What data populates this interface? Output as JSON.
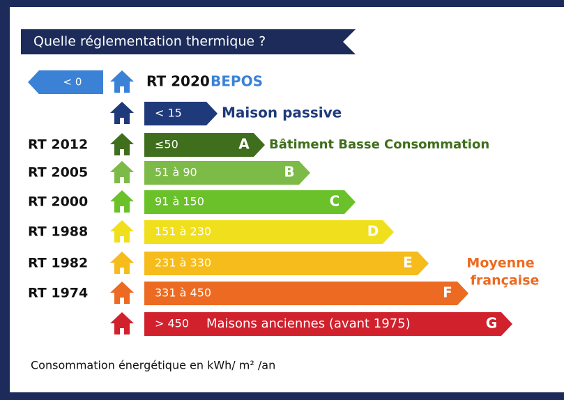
{
  "title": "Quelle réglementation thermique ?",
  "rows": [
    {
      "range": "< 0",
      "regulation": "RT 2020",
      "label": "BEPOS",
      "color": "#3b82d6"
    },
    {
      "range": "< 15",
      "label": "Maison passive",
      "color": "#1f3a7a"
    },
    {
      "regulation": "RT 2012",
      "range": "≤50",
      "class": "A",
      "label": "Bâtiment Basse Consommation",
      "color": "#3f6e1c"
    },
    {
      "regulation": "RT 2005",
      "range": "51 à 90",
      "class": "B",
      "color": "#7dbb48"
    },
    {
      "regulation": "RT 2000",
      "range": "91 à 150",
      "class": "C",
      "color": "#6ac129"
    },
    {
      "regulation": "RT 1988",
      "range": "151 à 230",
      "class": "D",
      "color": "#f0df1c"
    },
    {
      "regulation": "RT 1982",
      "range": "231 à 330",
      "class": "E",
      "color": "#f5bc1c"
    },
    {
      "regulation": "RT 1974",
      "range": "331 à 450",
      "class": "F",
      "color": "#ec6a21"
    },
    {
      "range": "> 450",
      "label": "Maisons anciennes (avant 1975)",
      "class": "G",
      "color": "#d0212d"
    }
  ],
  "note": [
    "Moyenne",
    "française"
  ],
  "footer": "Consommation énergétique en kWh/ m² /an"
}
